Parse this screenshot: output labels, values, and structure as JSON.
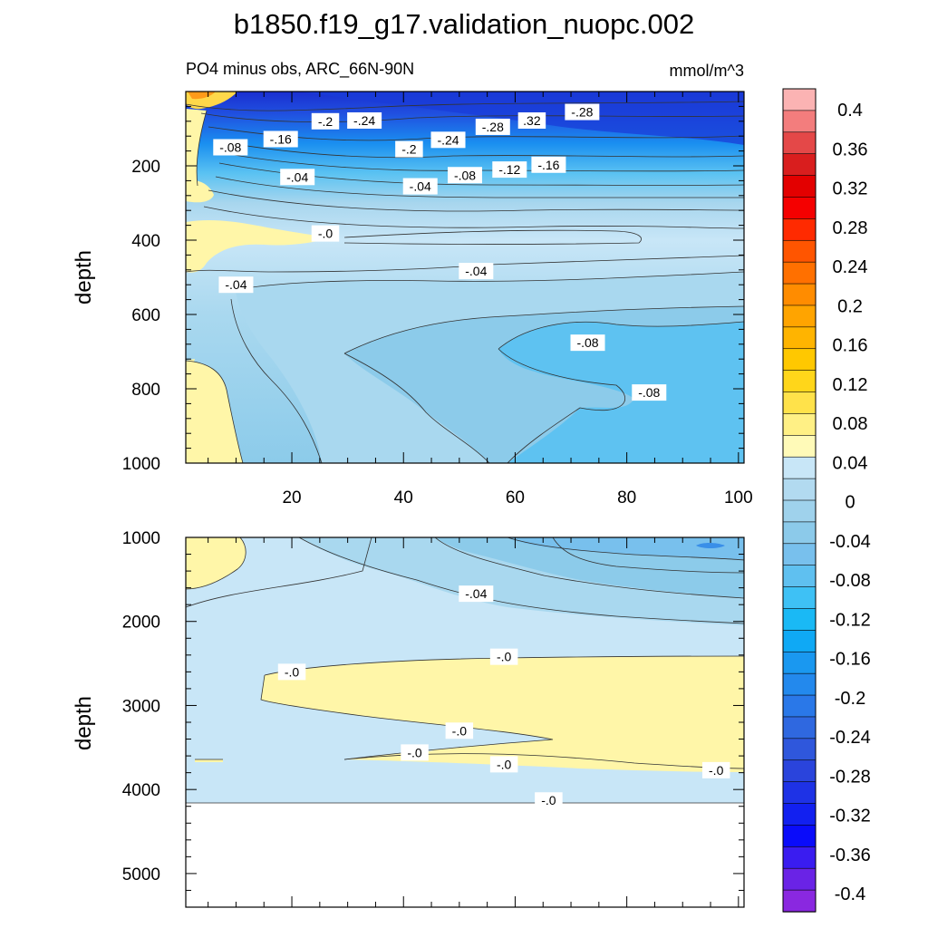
{
  "title": "b1850.f19_g17.validation_nuopc.002",
  "chart_data": [
    {
      "type": "contour",
      "subtitle_left": "PO4 minus obs, ARC_66N-90N",
      "subtitle_right": "mmol/m^3",
      "ylabel": "depth",
      "xlim": [
        1,
        101
      ],
      "ylim": [
        1000,
        0
      ],
      "x_ticks": [
        "20",
        "40",
        "60",
        "80",
        "100"
      ],
      "y_ticks": [
        "200",
        "400",
        "600",
        "800",
        "1000"
      ],
      "contour_labels": [
        {
          "text": "-.2",
          "x": 26,
          "y": 80
        },
        {
          "text": "-.24",
          "x": 33,
          "y": 78
        },
        {
          "text": "-.28",
          "x": 56,
          "y": 95
        },
        {
          "text": ".32",
          "x": 63,
          "y": 78
        },
        {
          "text": "-.28",
          "x": 72,
          "y": 55
        },
        {
          "text": "-.08",
          "x": 9,
          "y": 150
        },
        {
          "text": "-.16",
          "x": 18,
          "y": 128
        },
        {
          "text": "-.2",
          "x": 41,
          "y": 155
        },
        {
          "text": "-.24",
          "x": 48,
          "y": 130
        },
        {
          "text": "-.04",
          "x": 21,
          "y": 230
        },
        {
          "text": "-.04",
          "x": 43,
          "y": 255
        },
        {
          "text": "-.08",
          "x": 51,
          "y": 225
        },
        {
          "text": "-.12",
          "x": 59,
          "y": 210
        },
        {
          "text": "-.16",
          "x": 66,
          "y": 197
        },
        {
          "text": "-.0",
          "x": 26,
          "y": 382
        },
        {
          "text": "-.04",
          "x": 10,
          "y": 520
        },
        {
          "text": "-.04",
          "x": 53,
          "y": 483
        },
        {
          "text": "-.08",
          "x": 73,
          "y": 676
        },
        {
          "text": "-.08",
          "x": 84,
          "y": 810
        }
      ]
    },
    {
      "type": "contour",
      "ylabel": "depth",
      "xlim": [
        1,
        101
      ],
      "ylim": [
        5400,
        1000
      ],
      "y_ticks": [
        "1000",
        "2000",
        "3000",
        "4000",
        "5000"
      ],
      "contour_labels": [
        {
          "text": "-.04",
          "x": 53,
          "y": 1670
        },
        {
          "text": "-.0",
          "x": 20,
          "y": 2600
        },
        {
          "text": "-.0",
          "x": 58,
          "y": 2420
        },
        {
          "text": "-.0",
          "x": 50,
          "y": 3300
        },
        {
          "text": "-.0",
          "x": 42,
          "y": 3560
        },
        {
          "text": "-.0",
          "x": 58,
          "y": 3700
        },
        {
          "text": "-.0",
          "x": 96,
          "y": 3770
        },
        {
          "text": "-.0",
          "x": 66,
          "y": 4130
        }
      ]
    }
  ],
  "colorbar": {
    "labels": [
      "0.4",
      "0.36",
      "0.32",
      "0.28",
      "0.24",
      "0.2",
      "0.16",
      "0.12",
      "0.08",
      "0.04",
      "0",
      "-0.04",
      "-0.08",
      "-0.12",
      "-0.16",
      "-0.2",
      "-0.24",
      "-0.28",
      "-0.32",
      "-0.36",
      "-0.4"
    ],
    "colors": [
      "#fbb3b3",
      "#f37d7d",
      "#e44848",
      "#d91e1e",
      "#e30000",
      "#f50000",
      "#ff2a00",
      "#ff5500",
      "#ff7000",
      "#ff8c00",
      "#ffa400",
      "#ffb400",
      "#ffc800",
      "#ffd61a",
      "#ffe24a",
      "#fff085",
      "#fffab8",
      "#c8e6f7",
      "#b2daf0",
      "#9fd2ec",
      "#8ccaea",
      "#78c0ed",
      "#5fc0f0",
      "#3ec1f5",
      "#1ab9f5",
      "#0fa9f5",
      "#1a98f0",
      "#2389ed",
      "#2a78e8",
      "#2f68e0",
      "#2f57dc",
      "#2a44dc",
      "#1e32e6",
      "#1220f0",
      "#0a0cfa",
      "#3a1cf0",
      "#6a23e6",
      "#8a28e0"
    ]
  }
}
